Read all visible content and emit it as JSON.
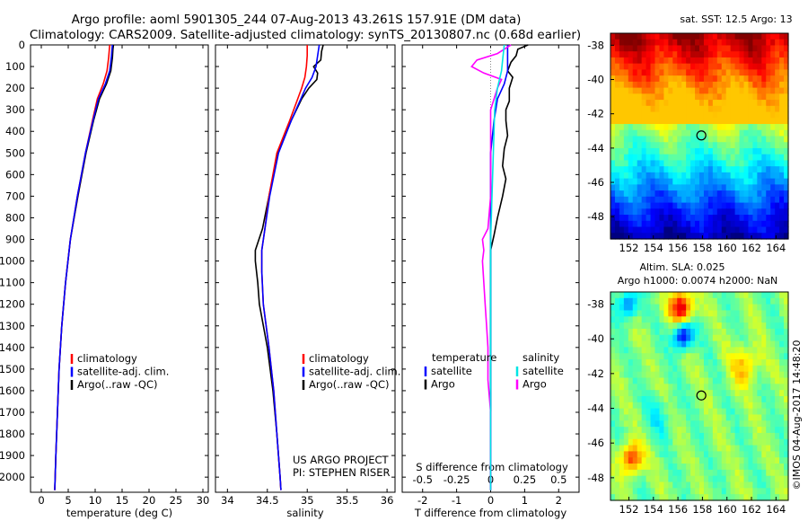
{
  "header": {
    "title_line1": "Argo profile: aoml 5901305_244 07-Aug-2013 43.261S 157.91E (DM data)",
    "title_line2": "Climatology: CARS2009. Satellite-adjusted climatology: synTS_20130807.nc (0.68d earlier)"
  },
  "colors": {
    "clim": "#ff0000",
    "sat": "#0000ff",
    "argo": "#000000",
    "sal_sat": "#00e5e5",
    "sal_argo": "#ff00ff",
    "frame": "#000000"
  },
  "chart_data": [
    {
      "id": "temperature",
      "type": "line",
      "xlabel": "temperature (deg C)",
      "ylabel": "",
      "xlim": [
        -2,
        31
      ],
      "ylim": [
        2070,
        0
      ],
      "xticks": [
        "0",
        "5",
        "10",
        "15",
        "20",
        "25",
        "30"
      ],
      "yticks": [
        "0",
        "100",
        "200",
        "300",
        "400",
        "500",
        "600",
        "700",
        "800",
        "900",
        "1000",
        "1100",
        "1200",
        "1300",
        "1400",
        "1500",
        "1600",
        "1700",
        "1800",
        "1900",
        "2000"
      ],
      "legend": [
        "climatology",
        "satellite-adj. clim.",
        "Argo(..raw -QC)"
      ],
      "series": [
        {
          "name": "climatology",
          "depth": [
            0,
            60,
            120,
            180,
            250,
            350,
            500,
            700,
            900,
            1100,
            1300,
            1500,
            1700,
            1900,
            2060
          ],
          "values": [
            12.7,
            12.5,
            12.2,
            11.5,
            10.4,
            9.5,
            8.2,
            6.7,
            5.4,
            4.5,
            3.8,
            3.3,
            3.0,
            2.7,
            2.5
          ]
        },
        {
          "name": "satellite-adj. clim.",
          "depth": [
            0,
            60,
            120,
            180,
            250,
            350,
            500,
            700,
            900,
            1100,
            1300,
            1500,
            1700,
            1900,
            2060
          ],
          "values": [
            13.2,
            13.0,
            12.7,
            11.9,
            10.6,
            9.6,
            8.2,
            6.7,
            5.4,
            4.5,
            3.8,
            3.3,
            3.0,
            2.7,
            2.5
          ]
        },
        {
          "name": "Argo(..raw -QC)",
          "depth": [
            0,
            20,
            60,
            120,
            180,
            250,
            350,
            500,
            700,
            900,
            1100,
            1300,
            1500,
            1700,
            1900,
            2060
          ],
          "values": [
            13.4,
            13.3,
            13.2,
            12.9,
            12.1,
            10.8,
            9.7,
            8.3,
            6.8,
            5.4,
            4.5,
            3.8,
            3.3,
            3.0,
            2.7,
            2.5
          ]
        }
      ]
    },
    {
      "id": "salinity",
      "type": "line",
      "xlabel": "salinity",
      "ylabel": "",
      "xlim": [
        33.85,
        36.1
      ],
      "ylim": [
        2070,
        0
      ],
      "xticks": [
        "34",
        "34.5",
        "35",
        "35.5",
        "36"
      ],
      "legend": [
        "climatology",
        "satellite-adj. clim.",
        "Argo(..raw -QC)"
      ],
      "annotation": [
        "US ARGO PROJECT",
        "PI: STEPHEN RISER"
      ],
      "series": [
        {
          "name": "climatology",
          "depth": [
            0,
            50,
            100,
            150,
            200,
            250,
            350,
            500,
            700,
            850,
            950,
            1050,
            1200,
            1400,
            1600,
            1800,
            2000,
            2060
          ],
          "values": [
            35.0,
            35.0,
            34.99,
            34.97,
            34.93,
            34.88,
            34.78,
            34.62,
            34.52,
            34.47,
            34.43,
            34.43,
            34.45,
            34.52,
            34.58,
            34.62,
            34.66,
            34.67
          ]
        },
        {
          "name": "satellite-adj. clim.",
          "depth": [
            0,
            50,
            100,
            150,
            200,
            250,
            350,
            500,
            700,
            850,
            950,
            1050,
            1200,
            1400,
            1600,
            1800,
            2000,
            2060
          ],
          "values": [
            35.15,
            35.13,
            35.11,
            35.06,
            34.98,
            34.92,
            34.8,
            34.64,
            34.53,
            34.47,
            34.43,
            34.43,
            34.45,
            34.52,
            34.58,
            34.62,
            34.66,
            34.67
          ]
        },
        {
          "name": "Argo(..raw -QC)",
          "depth": [
            0,
            30,
            70,
            100,
            130,
            160,
            200,
            250,
            350,
            500,
            700,
            850,
            950,
            1000,
            1100,
            1200,
            1400,
            1600,
            1800,
            2000,
            2060
          ],
          "values": [
            35.2,
            35.18,
            35.17,
            35.08,
            35.13,
            35.12,
            35.02,
            34.93,
            34.8,
            34.63,
            34.52,
            34.44,
            34.35,
            34.35,
            34.38,
            34.4,
            34.5,
            34.57,
            34.62,
            34.66,
            34.67
          ]
        }
      ]
    },
    {
      "id": "differences",
      "type": "line",
      "xlabel": "T difference from climatology",
      "ylabel": "",
      "top_label": "S difference from climatology",
      "xlim": [
        -2.6,
        2.6
      ],
      "ylim": [
        2070,
        0
      ],
      "xticks": [
        "-2",
        "-1",
        "0",
        "1",
        "2"
      ],
      "sticks": [
        "-0.5",
        "-0.25",
        "0",
        "0.25",
        "0.5"
      ],
      "legend_headers": [
        "temperature",
        "salinity"
      ],
      "legend": [
        "satellite",
        "Argo",
        "satellite",
        "Argo"
      ],
      "series": [
        {
          "name": "temperature satellite",
          "depth": [
            0,
            60,
            120,
            180,
            250,
            350,
            500,
            700,
            900,
            1100,
            1300,
            1500,
            1700,
            1900,
            2060
          ],
          "values": [
            0.5,
            0.5,
            0.5,
            0.4,
            0.2,
            0.1,
            0,
            0,
            0,
            0,
            0,
            0,
            0,
            0,
            0
          ]
        },
        {
          "name": "temperature Argo",
          "depth": [
            0,
            20,
            50,
            80,
            120,
            150,
            200,
            260,
            300,
            350,
            420,
            480,
            560,
            620,
            700,
            800,
            880,
            950,
            1050,
            1100,
            1200,
            1300,
            1400,
            1600,
            1800,
            2060
          ],
          "values": [
            1.1,
            0.8,
            0.75,
            0.6,
            0.5,
            0.65,
            0.55,
            0.55,
            0.45,
            0.45,
            0.5,
            0.4,
            0.35,
            0.45,
            0.35,
            0.2,
            0.1,
            0.0,
            0.0,
            0.0,
            0.0,
            0.0,
            0.0,
            0.0,
            0.0,
            0.0
          ]
        },
        {
          "name": "salinity satellite",
          "depth": [
            0,
            60,
            120,
            200,
            300,
            500,
            700,
            900,
            1100,
            1400,
            1700,
            2060
          ],
          "values": [
            0.1,
            0.09,
            0.08,
            0.05,
            0.03,
            0.02,
            0.01,
            0.0,
            0.0,
            0.0,
            0.0,
            0.0
          ]
        },
        {
          "name": "salinity Argo",
          "depth": [
            0,
            40,
            70,
            100,
            130,
            160,
            200,
            300,
            500,
            700,
            850,
            900,
            950,
            1000,
            1100,
            1200,
            1300,
            1400,
            1550,
            1700,
            2060
          ],
          "values": [
            0.15,
            0.05,
            -0.1,
            -0.14,
            -0.05,
            0.08,
            0.05,
            0.0,
            0.0,
            0.0,
            -0.02,
            -0.06,
            -0.05,
            -0.06,
            -0.05,
            -0.04,
            -0.03,
            -0.02,
            -0.02,
            0.0,
            0.0
          ]
        }
      ]
    },
    {
      "id": "sst_map",
      "type": "heatmap",
      "title": "sat. SST: 12.5 Argo: 13",
      "xticks": [
        "152",
        "154",
        "156",
        "158",
        "160",
        "162",
        "164"
      ],
      "yticks": [
        "-38",
        "-40",
        "-42",
        "-44",
        "-46",
        "-48"
      ],
      "xlim": [
        150.5,
        165
      ],
      "ylim": [
        -49.3,
        -37.3
      ],
      "argo_lon": 157.91,
      "argo_lat": -43.26
    },
    {
      "id": "sla_map",
      "type": "heatmap",
      "title": "Altim. SLA: 0.025",
      "subtitle": "Argo h1000: 0.0074 h2000: NaN",
      "xticks": [
        "152",
        "154",
        "156",
        "158",
        "160",
        "162",
        "164"
      ],
      "yticks": [
        "-38",
        "-40",
        "-42",
        "-44",
        "-46",
        "-48"
      ],
      "xlim": [
        150.5,
        165
      ],
      "ylim": [
        -49.3,
        -37.3
      ],
      "argo_lon": 157.91,
      "argo_lat": -43.26
    }
  ],
  "footer": {
    "credit": "©IMOS 04-Aug-2017 14:48:20"
  }
}
